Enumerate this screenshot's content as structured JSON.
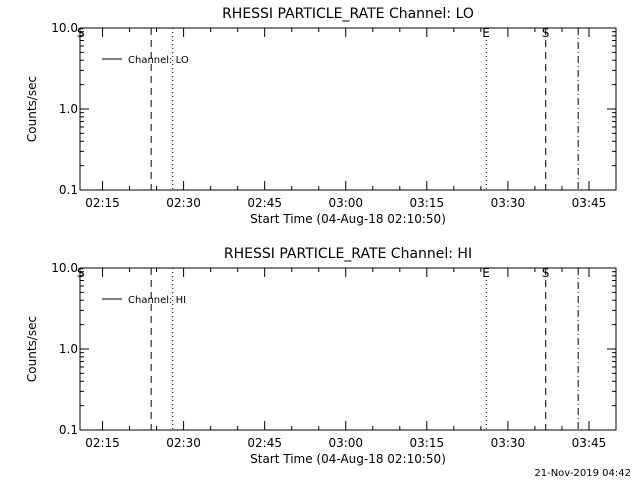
{
  "chart_data": [
    {
      "type": "line",
      "title": "RHESSI PARTICLE_RATE Channel: LO",
      "xlabel": "Start Time (04-Aug-18 02:10:50)",
      "ylabel": "Counts/sec",
      "y_scale": "log",
      "ylim": [
        0.1,
        10.0
      ],
      "y_ticks": [
        "0.1",
        "1.0",
        "10.0"
      ],
      "y_tick_values": [
        0.1,
        1.0,
        10.0
      ],
      "xlim": [
        "02:10:50",
        "03:50:00"
      ],
      "x_ticks": [
        "02:15",
        "02:30",
        "02:45",
        "03:00",
        "03:15",
        "03:30",
        "03:45"
      ],
      "legend": {
        "position": "top-left",
        "entries": [
          "Channel: LO"
        ]
      },
      "series": [
        {
          "name": "Channel: LO",
          "values": []
        }
      ],
      "markers": [
        {
          "time": "02:11",
          "style": "none",
          "label": "S"
        },
        {
          "time": "02:24",
          "style": "dashed",
          "label": ""
        },
        {
          "time": "02:28",
          "style": "dotted",
          "label": ""
        },
        {
          "time": "03:26",
          "style": "dotted",
          "label": "E"
        },
        {
          "time": "03:37",
          "style": "dashed",
          "label": "S"
        },
        {
          "time": "03:43",
          "style": "dashdot",
          "label": ""
        }
      ]
    },
    {
      "type": "line",
      "title": "RHESSI PARTICLE_RATE Channel: HI",
      "xlabel": "Start Time (04-Aug-18 02:10:50)",
      "ylabel": "Counts/sec",
      "y_scale": "log",
      "ylim": [
        0.1,
        10.0
      ],
      "y_ticks": [
        "0.1",
        "1.0",
        "10.0"
      ],
      "y_tick_values": [
        0.1,
        1.0,
        10.0
      ],
      "xlim": [
        "02:10:50",
        "03:50:00"
      ],
      "x_ticks": [
        "02:15",
        "02:30",
        "02:45",
        "03:00",
        "03:15",
        "03:30",
        "03:45"
      ],
      "legend": {
        "position": "top-left",
        "entries": [
          "Channel: HI"
        ]
      },
      "series": [
        {
          "name": "Channel: HI",
          "values": []
        }
      ],
      "markers": [
        {
          "time": "02:11",
          "style": "none",
          "label": "S"
        },
        {
          "time": "02:24",
          "style": "dashed",
          "label": ""
        },
        {
          "time": "02:28",
          "style": "dotted",
          "label": ""
        },
        {
          "time": "03:26",
          "style": "dotted",
          "label": "E"
        },
        {
          "time": "03:37",
          "style": "dashed",
          "label": "S"
        },
        {
          "time": "03:43",
          "style": "dashdot",
          "label": ""
        }
      ]
    }
  ],
  "footer": {
    "timestamp": "21-Nov-2019 04:42"
  }
}
